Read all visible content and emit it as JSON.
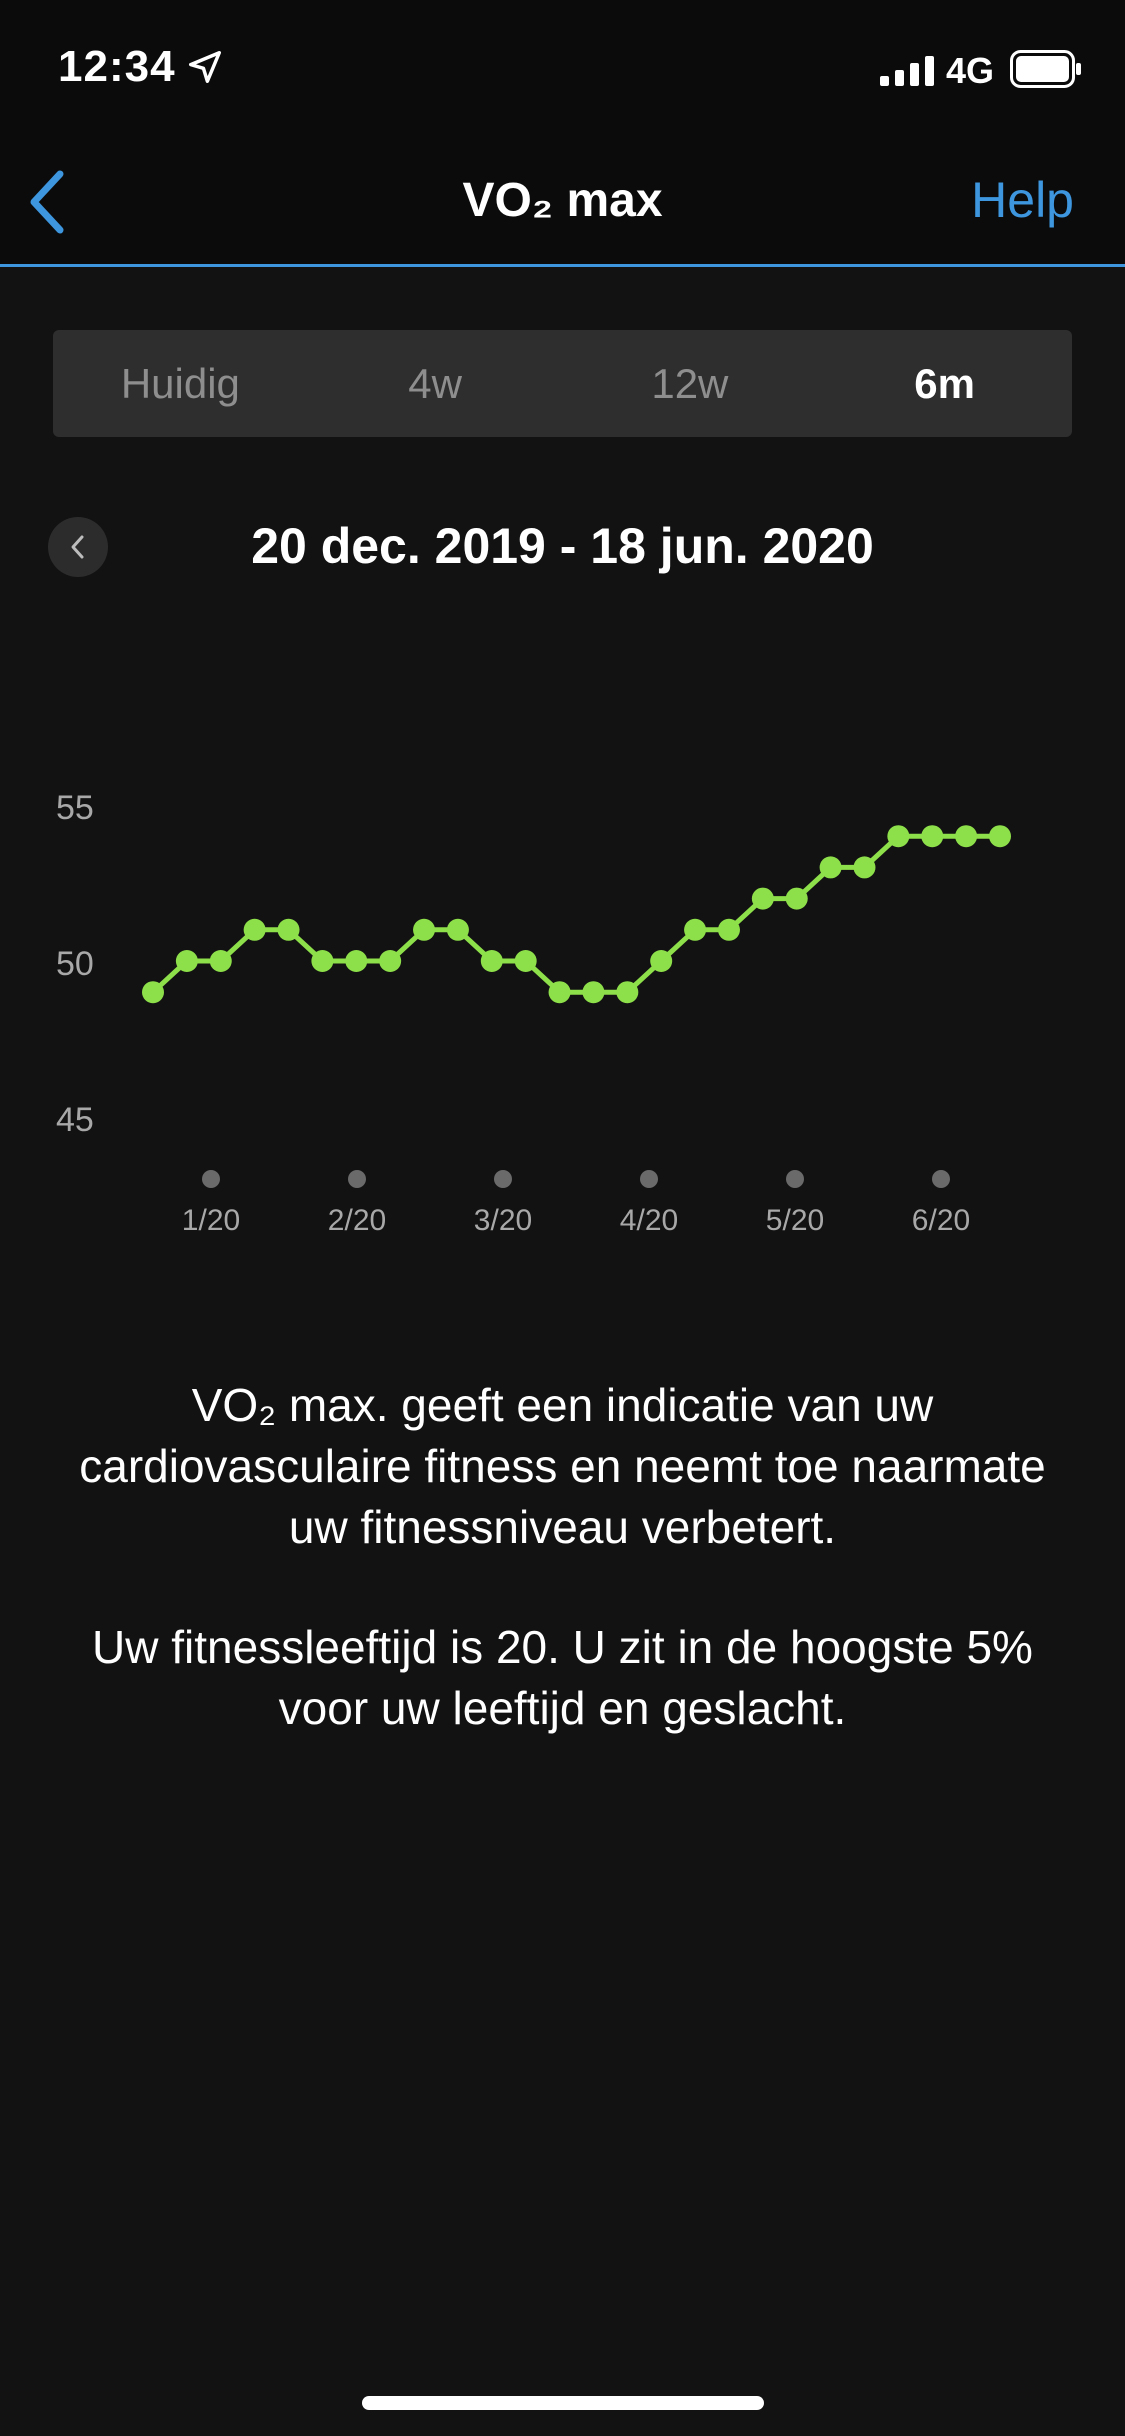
{
  "status_bar": {
    "time": "12:34",
    "network": "4G",
    "icons": [
      "location-arrow-icon",
      "signal-icon",
      "battery-icon"
    ]
  },
  "nav": {
    "back_icon": "chevron-left-icon",
    "title": "VO₂ max",
    "help": "Help"
  },
  "tabs": [
    {
      "label": "Huidig",
      "active": false
    },
    {
      "label": "4w",
      "active": false
    },
    {
      "label": "12w",
      "active": false
    },
    {
      "label": "6m",
      "active": true
    }
  ],
  "date_range": {
    "label": "20 dec. 2019 - 18 jun. 2020",
    "prev_icon": "chevron-left-icon"
  },
  "chart_data": {
    "type": "line",
    "title": "",
    "xlabel": "",
    "ylabel": "",
    "x_tick_labels": [
      "1/20",
      "2/20",
      "3/20",
      "4/20",
      "5/20",
      "6/20"
    ],
    "y_tick_labels": [
      "55",
      "50",
      "45"
    ],
    "y_ticks": [
      55,
      50,
      45
    ],
    "ylim": [
      45,
      55
    ],
    "grid": false,
    "series": [
      {
        "color": "#8ee04a",
        "values": [
          49,
          50,
          50,
          51,
          51,
          50,
          50,
          50,
          51,
          51,
          50,
          50,
          49,
          49,
          49,
          50,
          51,
          51,
          52,
          52,
          53,
          53,
          54,
          54,
          54,
          54
        ]
      }
    ]
  },
  "description": {
    "paragraph1": "VO₂ max. geeft een indicatie van uw cardiovasculaire fitness en neemt toe naarmate uw fitnessniveau verbetert.",
    "paragraph2": "Uw fitnessleeftijd is 20. U zit in de hoogste 5% voor uw leeftijd en geslacht."
  },
  "colors": {
    "accent": "#3d96de",
    "series": "#8ee04a",
    "background": "#121212"
  }
}
